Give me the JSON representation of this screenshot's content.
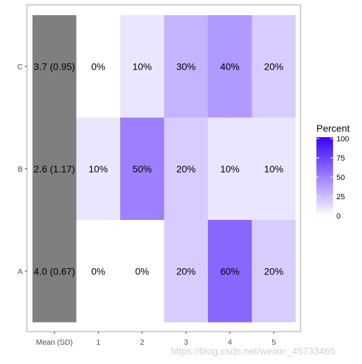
{
  "chart_data": {
    "type": "heatmap",
    "rows": [
      "A",
      "B",
      "C"
    ],
    "columns": [
      "Mean (SD)",
      "1",
      "2",
      "3",
      "4",
      "5"
    ],
    "summary_color": "#7f7f7f",
    "low_color": "#ffffff",
    "high_color": "#3a00ff",
    "mean_sd": {
      "A": "4.0 (0.67)",
      "B": "2.6 (1.17)",
      "C": "3.7 (0.95)"
    },
    "values": {
      "A": [
        0,
        0,
        20,
        60,
        20
      ],
      "B": [
        10,
        50,
        20,
        10,
        10
      ],
      "C": [
        0,
        10,
        30,
        40,
        20
      ]
    },
    "labels": {
      "A": [
        "0%",
        "0%",
        "20%",
        "60%",
        "20%"
      ],
      "B": [
        "10%",
        "50%",
        "20%",
        "10%",
        "10%"
      ],
      "C": [
        "0%",
        "10%",
        "30%",
        "40%",
        "20%"
      ]
    },
    "legend": {
      "title": "Percent",
      "ticks": [
        "0",
        "25",
        "50",
        "75",
        "100"
      ],
      "tick_values": [
        0,
        25,
        50,
        75,
        100
      ],
      "range": [
        0,
        100
      ]
    }
  },
  "watermark": "https://blog.csdn.net/weixin_45733465"
}
